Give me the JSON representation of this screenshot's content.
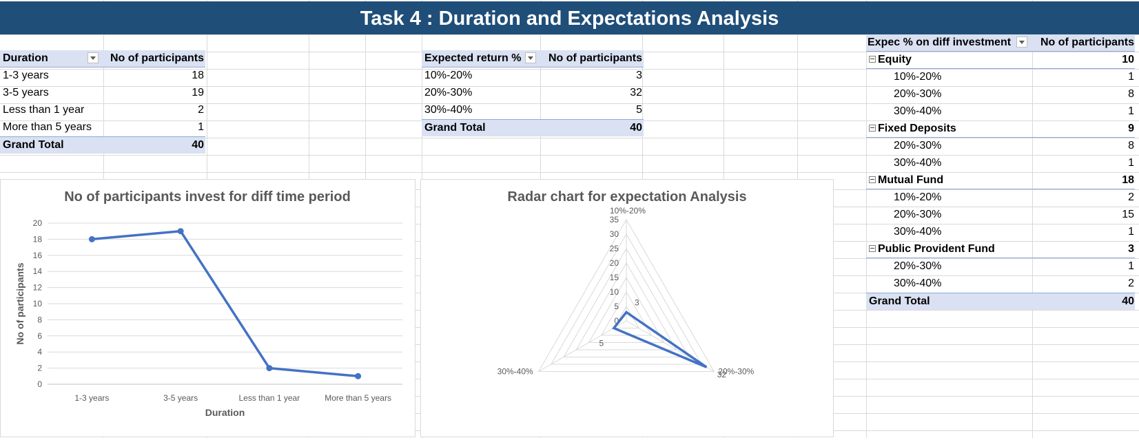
{
  "banner": {
    "title": "Task 4 : Duration and Expectations Analysis"
  },
  "duration_table": {
    "headers": [
      "Duration",
      "No of participants"
    ],
    "rows": [
      {
        "label": "1-3 years",
        "value": "18"
      },
      {
        "label": "3-5 years",
        "value": "19"
      },
      {
        "label": "Less than 1 year",
        "value": "2"
      },
      {
        "label": "More than 5 years",
        "value": "1"
      }
    ],
    "total": {
      "label": "Grand Total",
      "value": "40"
    }
  },
  "expected_table": {
    "headers": [
      "Expected return %",
      "No of participants"
    ],
    "rows": [
      {
        "label": "10%-20%",
        "value": "3"
      },
      {
        "label": "20%-30%",
        "value": "32"
      },
      {
        "label": "30%-40%",
        "value": "5"
      }
    ],
    "total": {
      "label": "Grand Total",
      "value": "40"
    }
  },
  "investment_table": {
    "headers": [
      "Expec % on diff investment",
      "No of participants"
    ],
    "groups": [
      {
        "label": "Equity",
        "value": "10",
        "items": [
          {
            "label": "10%-20%",
            "value": "1"
          },
          {
            "label": "20%-30%",
            "value": "8"
          },
          {
            "label": "30%-40%",
            "value": "1"
          }
        ]
      },
      {
        "label": "Fixed Deposits",
        "value": "9",
        "items": [
          {
            "label": "20%-30%",
            "value": "8"
          },
          {
            "label": "30%-40%",
            "value": "1"
          }
        ]
      },
      {
        "label": "Mutual Fund",
        "value": "18",
        "items": [
          {
            "label": "10%-20%",
            "value": "2"
          },
          {
            "label": "20%-30%",
            "value": "15"
          },
          {
            "label": "30%-40%",
            "value": "1"
          }
        ]
      },
      {
        "label": "Public Provident Fund",
        "value": "3",
        "items": [
          {
            "label": "20%-30%",
            "value": "1"
          },
          {
            "label": "30%-40%",
            "value": "2"
          }
        ]
      }
    ],
    "total": {
      "label": "Grand Total",
      "value": "40"
    }
  },
  "chart_data": [
    {
      "type": "line",
      "title": "No of participants invest for diff time period",
      "xlabel": "Duration",
      "ylabel": "No of participants",
      "categories": [
        "1-3 years",
        "3-5 years",
        "Less than 1 year",
        "More than 5 years"
      ],
      "values": [
        18,
        19,
        2,
        1
      ],
      "ylim": [
        0,
        20
      ],
      "yticks": [
        0,
        2,
        4,
        6,
        8,
        10,
        12,
        14,
        16,
        18,
        20
      ],
      "grid": true,
      "color": "#4472c4"
    },
    {
      "type": "radar",
      "title": "Radar chart for expectation Analysis",
      "categories": [
        "10%-20%",
        "20%-30%",
        "30%-40%"
      ],
      "values": [
        3,
        32,
        5
      ],
      "rlim": [
        0,
        35
      ],
      "rticks": [
        0,
        5,
        10,
        15,
        20,
        25,
        30,
        35
      ],
      "data_labels": [
        "3",
        "32",
        "5"
      ],
      "color": "#4472c4"
    }
  ]
}
